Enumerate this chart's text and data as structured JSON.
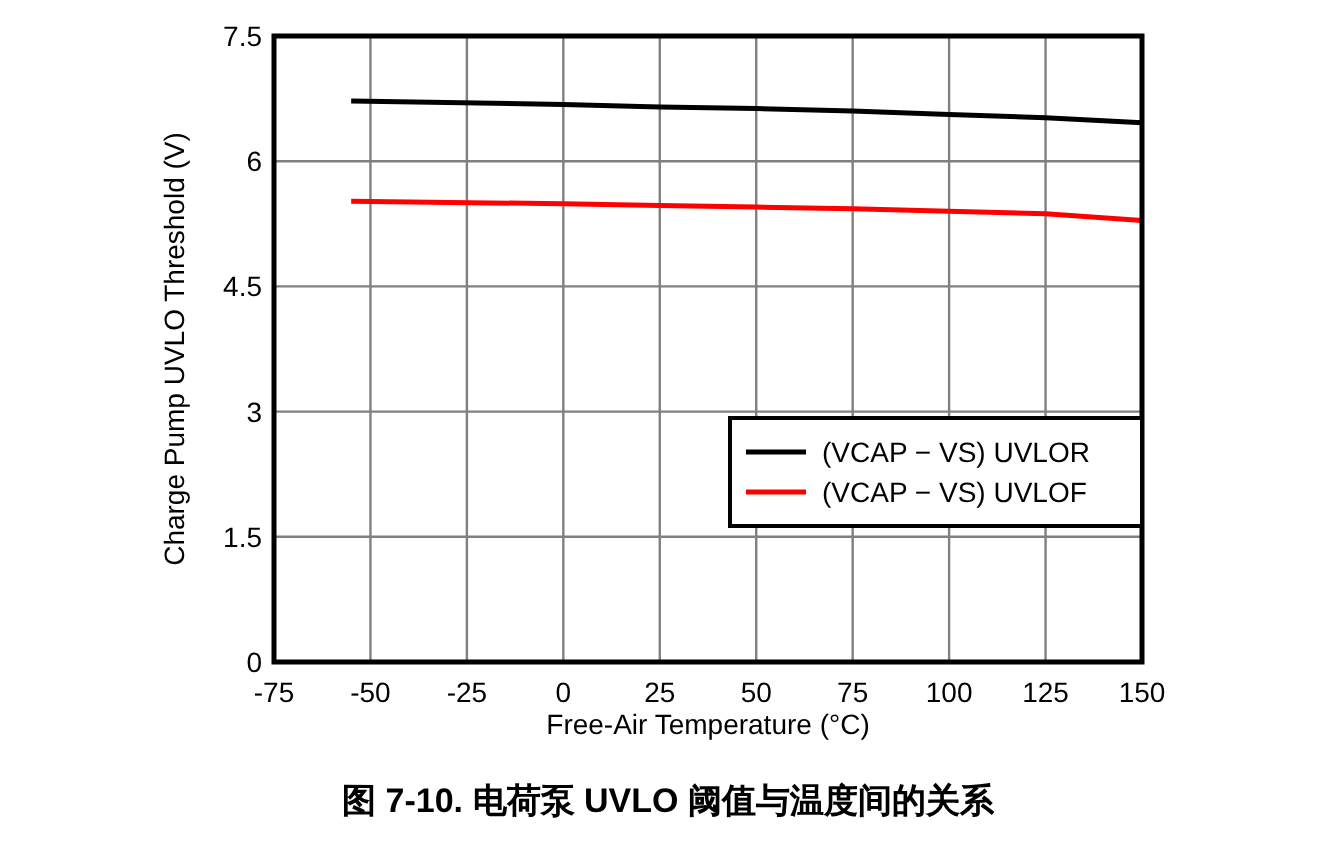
{
  "chart_data": {
    "type": "line",
    "title": "图 7-10. 电荷泵 UVLO 阈值与温度间的关系",
    "xlabel": "Free-Air Temperature (°C)",
    "ylabel": "Charge Pump UVLO Threshold (V)",
    "xlim": [
      -75,
      150
    ],
    "xticks": [
      -75,
      -50,
      -25,
      0,
      25,
      50,
      75,
      100,
      125,
      150
    ],
    "ylim": [
      0,
      7.5
    ],
    "yticks": [
      0,
      1.5,
      3,
      4.5,
      6,
      7.5
    ],
    "x": [
      -55,
      0,
      25,
      50,
      75,
      100,
      125,
      150
    ],
    "series": [
      {
        "name": "(VCAP − VS) UVLOR",
        "color": "#000000",
        "values": [
          6.72,
          6.68,
          6.65,
          6.63,
          6.6,
          6.56,
          6.52,
          6.46
        ]
      },
      {
        "name": "(VCAP − VS) UVLOF",
        "color": "#ff0000",
        "values": [
          5.52,
          5.49,
          5.47,
          5.45,
          5.43,
          5.4,
          5.37,
          5.29
        ]
      }
    ],
    "grid": true,
    "legend": "bottom right",
    "line_style": "solid"
  }
}
